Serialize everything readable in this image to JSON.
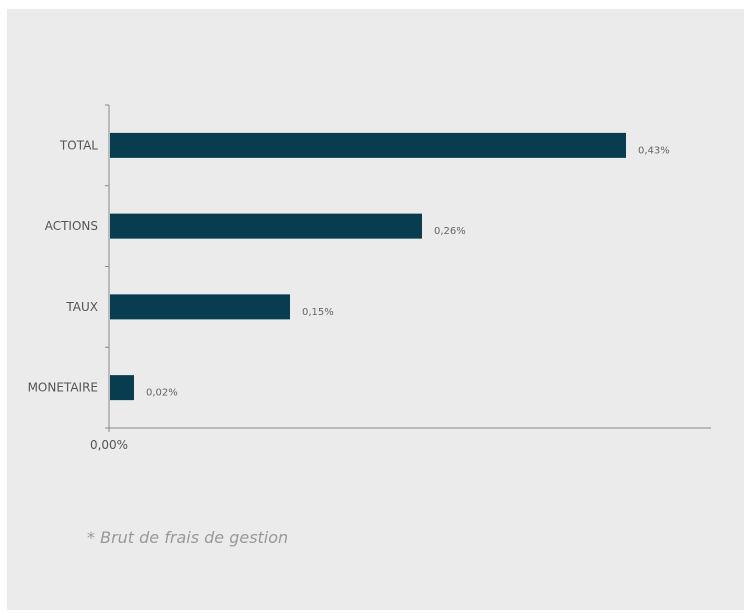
{
  "chart_data": {
    "type": "bar",
    "orientation": "horizontal",
    "categories": [
      "TOTAL",
      "ACTIONS",
      "TAUX",
      "MONETAIRE"
    ],
    "values": [
      0.43,
      0.26,
      0.15,
      0.02
    ],
    "value_labels": [
      "0,43%",
      "0,26%",
      "0,15%",
      "0,02%"
    ],
    "x_tick_labels": [
      "0,00%"
    ],
    "xlim": [
      0,
      0.5
    ],
    "grid": false,
    "bar_color": "#073d4f",
    "title": "",
    "xlabel": "",
    "ylabel": ""
  },
  "footnote": "*  Brut de frais de gestion"
}
